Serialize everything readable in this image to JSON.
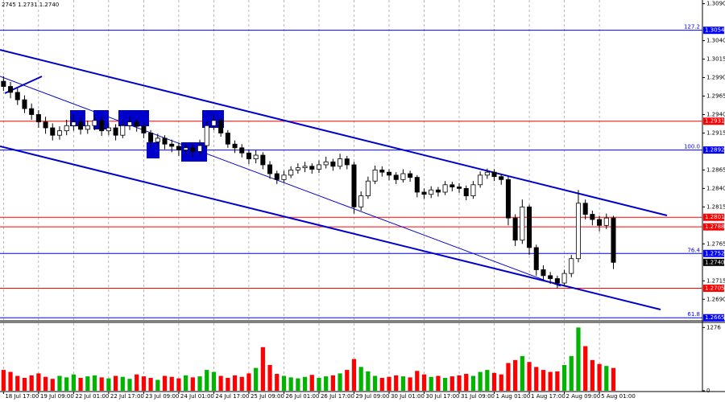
{
  "chart_data": {
    "type": "candlestick",
    "info": "2745 1.2731 1.2740",
    "candle_up_color": "#ffffff",
    "candle_down_color": "#000000",
    "wick_color": "#000000",
    "open": [
      1.2985,
      1.2978,
      1.297,
      1.296,
      1.2948,
      1.294,
      1.293,
      1.2922,
      1.2912,
      1.2918,
      1.2925,
      1.293,
      1.292,
      1.2925,
      1.2932,
      1.2918,
      1.2922,
      1.2912,
      1.2925,
      1.293,
      1.2924,
      1.2915,
      1.2903,
      1.2908,
      1.29,
      1.2897,
      1.2892,
      1.2895,
      1.289,
      1.2898,
      1.2925,
      1.2932,
      1.2915,
      1.29,
      1.2895,
      1.2888,
      1.288,
      1.2885,
      1.2872,
      1.286,
      1.2852,
      1.2858,
      1.2865,
      1.2868,
      1.287,
      1.2866,
      1.2872,
      1.2876,
      1.287,
      1.288,
      1.2872,
      1.2815,
      1.283,
      1.285,
      1.2865,
      1.2862,
      1.2858,
      1.2852,
      1.286,
      1.2855,
      1.2835,
      1.2832,
      1.2838,
      1.2835,
      1.2845,
      1.2842,
      1.284,
      1.283,
      1.2845,
      1.2858,
      1.2862,
      1.2856,
      1.2852,
      1.28,
      1.277,
      1.2815,
      1.276,
      1.273,
      1.2722,
      1.2718,
      1.2712,
      1.2725,
      1.2745,
      1.282,
      1.2805,
      1.2798,
      1.279,
      1.28
    ],
    "high": [
      1.2992,
      1.2984,
      1.2976,
      1.2966,
      1.2955,
      1.2946,
      1.2937,
      1.2928,
      1.2924,
      1.2933,
      1.294,
      1.2936,
      1.2932,
      1.294,
      1.2937,
      1.2929,
      1.2927,
      1.2932,
      1.2938,
      1.2934,
      1.2929,
      1.2919,
      1.2914,
      1.2912,
      1.2906,
      1.2902,
      1.2901,
      1.29,
      1.2906,
      1.2931,
      1.294,
      1.2936,
      1.2919,
      1.2905,
      1.29,
      1.2893,
      1.2892,
      1.2889,
      1.2877,
      1.2864,
      1.2864,
      1.287,
      1.2874,
      1.2876,
      1.2874,
      1.2878,
      1.2883,
      1.288,
      1.2887,
      1.2884,
      1.2876,
      1.2836,
      1.2856,
      1.2871,
      1.287,
      1.2866,
      1.2862,
      1.2866,
      1.2864,
      1.2858,
      1.284,
      1.2843,
      1.2842,
      1.285,
      1.2849,
      1.2847,
      1.2844,
      1.285,
      1.2863,
      1.2867,
      1.2866,
      1.286,
      1.2856,
      1.2805,
      1.2825,
      1.2818,
      1.2764,
      1.2736,
      1.2727,
      1.2722,
      1.273,
      1.275,
      1.2838,
      1.2825,
      1.281,
      1.2803,
      1.2806,
      1.2803
    ],
    "low": [
      1.2972,
      1.2962,
      1.2953,
      1.2942,
      1.2933,
      1.2922,
      1.2914,
      1.2905,
      1.2906,
      1.2912,
      1.2918,
      1.2913,
      1.2914,
      1.2919,
      1.2911,
      1.2912,
      1.2905,
      1.2908,
      1.2919,
      1.2917,
      1.2908,
      1.2896,
      1.2898,
      1.2893,
      1.2889,
      1.2884,
      1.2886,
      1.2882,
      1.2885,
      1.2894,
      1.2919,
      1.291,
      1.2895,
      1.2888,
      1.2882,
      1.2873,
      1.2874,
      1.2866,
      1.2853,
      1.2846,
      1.2848,
      1.2854,
      1.286,
      1.2862,
      1.286,
      1.2861,
      1.2867,
      1.2864,
      1.2866,
      1.2866,
      1.2806,
      1.281,
      1.2826,
      1.2846,
      1.2856,
      1.2851,
      1.2846,
      1.2848,
      1.2849,
      1.2828,
      1.2826,
      1.2827,
      1.2829,
      1.2831,
      1.2836,
      1.2834,
      1.2824,
      1.2826,
      1.2841,
      1.2853,
      1.285,
      1.2845,
      1.279,
      1.2762,
      1.2765,
      1.275,
      1.2722,
      1.2715,
      1.2711,
      1.2705,
      1.2708,
      1.272,
      1.274,
      1.2798,
      1.279,
      1.2782,
      1.2785,
      1.2731
    ],
    "close": [
      1.2978,
      1.297,
      1.296,
      1.2948,
      1.294,
      1.293,
      1.2922,
      1.2912,
      1.2918,
      1.2925,
      1.293,
      1.292,
      1.2925,
      1.2932,
      1.2918,
      1.2922,
      1.2912,
      1.2925,
      1.293,
      1.2924,
      1.2915,
      1.2903,
      1.2908,
      1.29,
      1.2897,
      1.2892,
      1.2895,
      1.289,
      1.2898,
      1.2925,
      1.2932,
      1.2915,
      1.29,
      1.2895,
      1.2888,
      1.288,
      1.2885,
      1.2872,
      1.286,
      1.2852,
      1.2858,
      1.2865,
      1.2868,
      1.287,
      1.2866,
      1.2872,
      1.2876,
      1.287,
      1.288,
      1.2872,
      1.2815,
      1.283,
      1.285,
      1.2865,
      1.2862,
      1.2858,
      1.2852,
      1.286,
      1.2855,
      1.2835,
      1.2832,
      1.2838,
      1.2835,
      1.2845,
      1.2842,
      1.284,
      1.283,
      1.2845,
      1.2858,
      1.2862,
      1.2856,
      1.2852,
      1.28,
      1.277,
      1.2815,
      1.276,
      1.273,
      1.2722,
      1.2718,
      1.2712,
      1.2725,
      1.2745,
      1.282,
      1.2805,
      1.2798,
      1.279,
      1.28,
      1.274
    ],
    "xlim": [
      -0.5,
      99.7
    ],
    "ylim": [
      1.2662,
      1.3095
    ],
    "xticks": [
      {
        "value": 0,
        "label": "18 Jul 17:00"
      },
      {
        "value": 5,
        "label": "19 Jul 09:00"
      },
      {
        "value": 10,
        "label": "22 Jul 01:00"
      },
      {
        "value": 15,
        "label": "22 Jul 17:00"
      },
      {
        "value": 20,
        "label": "23 Jul 09:00"
      },
      {
        "value": 25,
        "label": "24 Jul 01:00"
      },
      {
        "value": 30,
        "label": "24 Jul 17:00"
      },
      {
        "value": 35,
        "label": "25 Jul 09:00"
      },
      {
        "value": 40,
        "label": "26 Jul 01:00"
      },
      {
        "value": 45,
        "label": "26 Jul 17:00"
      },
      {
        "value": 50,
        "label": "29 Jul 09:00"
      },
      {
        "value": 55,
        "label": "30 Jul 01:00"
      },
      {
        "value": 60,
        "label": "30 Jul 17:00"
      },
      {
        "value": 65,
        "label": "31 Jul 09:00"
      },
      {
        "value": 70,
        "label": "1 Aug 01:00"
      },
      {
        "value": 75,
        "label": "1 Aug 17:00"
      },
      {
        "value": 80,
        "label": "2 Aug 09:00"
      },
      {
        "value": 85,
        "label": "5 Aug 01:00"
      }
    ],
    "yticks": [
      {
        "value": 1.309,
        "label": "1.3090"
      },
      {
        "value": 1.304,
        "label": "1.3040"
      },
      {
        "value": 1.3015,
        "label": "1.3015"
      },
      {
        "value": 1.299,
        "label": "1.2990"
      },
      {
        "value": 1.2965,
        "label": "1.2965"
      },
      {
        "value": 1.294,
        "label": "1.2940"
      },
      {
        "value": 1.2915,
        "label": "1.2915"
      },
      {
        "value": 1.2865,
        "label": "1.2865"
      },
      {
        "value": 1.284,
        "label": "1.2840"
      },
      {
        "value": 1.2815,
        "label": "1.2815"
      },
      {
        "value": 1.2765,
        "label": "1.2765"
      },
      {
        "value": 1.2715,
        "label": "1.2715"
      },
      {
        "value": 1.269,
        "label": "1.2690"
      }
    ],
    "levels": [
      {
        "value": 1.3054,
        "label": "1.3054",
        "color": "#0000ff",
        "fib": "127.2"
      },
      {
        "value": 1.2931,
        "label": "1.2931",
        "color": "#ff0000"
      },
      {
        "value": 1.2892,
        "label": "1.2892",
        "color": "#0000ff",
        "fib": "100.0"
      },
      {
        "value": 1.2801,
        "label": "1.2801",
        "color": "#ff0000"
      },
      {
        "value": 1.2788,
        "label": "1.2788",
        "color": "#ff0000"
      },
      {
        "value": 1.2752,
        "label": "1.2752",
        "color": "#0000ff",
        "fib": "76.4"
      },
      {
        "value": 1.2705,
        "label": "1.2705",
        "color": "#ff0000"
      },
      {
        "value": 1.2665,
        "label": "1.2665",
        "color": "#0000ff",
        "fib": "61.8"
      }
    ],
    "current_price": {
      "value": 1.274,
      "label": "1.2740"
    },
    "volume": {
      "values": [
        420,
        380,
        300,
        260,
        310,
        350,
        280,
        240,
        300,
        270,
        330,
        260,
        290,
        310,
        270,
        250,
        300,
        280,
        240,
        330,
        290,
        260,
        220,
        300,
        280,
        250,
        310,
        270,
        290,
        420,
        380,
        300,
        260,
        310,
        280,
        350,
        460,
        880,
        520,
        340,
        300,
        270,
        250,
        280,
        320,
        260,
        290,
        310,
        350,
        420,
        640,
        480,
        390,
        300,
        260,
        280,
        310,
        290,
        270,
        400,
        330,
        280,
        300,
        260,
        290,
        310,
        340,
        300,
        380,
        420,
        360,
        330,
        560,
        620,
        700,
        580,
        480,
        420,
        380,
        390,
        520,
        700,
        1276,
        900,
        620,
        540,
        500,
        460
      ],
      "ylim": [
        0,
        1330
      ],
      "yticks": [
        1276,
        0
      ],
      "up_color": "#00b400",
      "down_color": "#ff0000"
    }
  }
}
